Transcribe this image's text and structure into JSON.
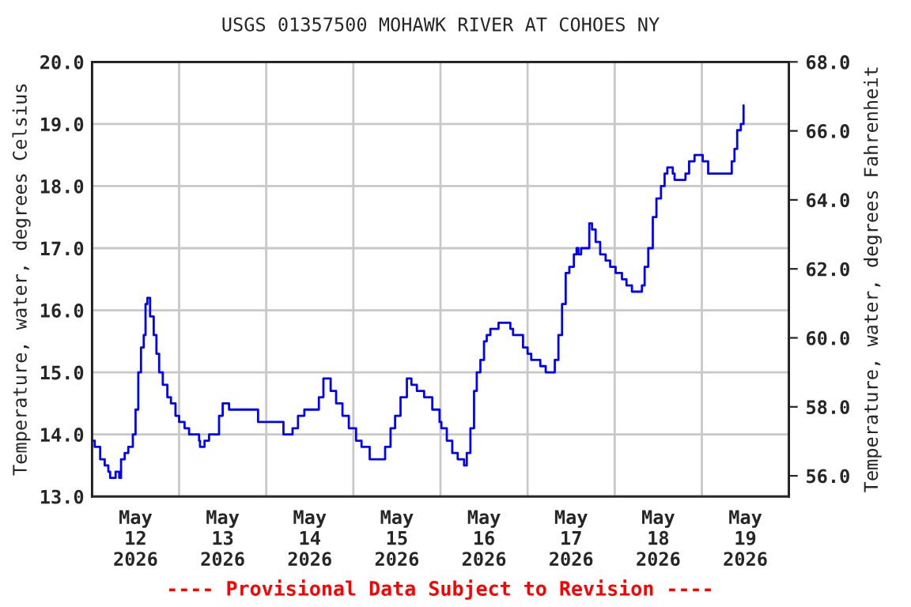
{
  "chart_data": {
    "type": "step",
    "title": "USGS 01357500 MOHAWK RIVER AT COHOES NY",
    "ylabel": "Temperature, water, degrees Celsius",
    "y2label": "Temperature, water, degrees Fahrenheit",
    "annotations": [
      "---- Provisional Data Subject to Revision ----"
    ],
    "series": [
      {
        "color": "#0000ff",
        "x": [
          "2026-05-12T00:00",
          "2026-05-12T00:45",
          "2026-05-12T02:15",
          "2026-05-12T03:30",
          "2026-05-12T04:30",
          "2026-05-12T05:00",
          "2026-05-12T06:00",
          "2026-05-12T06:30",
          "2026-05-12T07:30",
          "2026-05-12T08:00",
          "2026-05-12T09:00",
          "2026-05-12T10:00",
          "2026-05-12T11:00",
          "2026-05-12T11:15",
          "2026-05-12T12:00",
          "2026-05-12T12:45",
          "2026-05-12T13:30",
          "2026-05-12T14:15",
          "2026-05-12T14:45",
          "2026-05-12T15:15",
          "2026-05-12T15:45",
          "2026-05-12T16:00",
          "2026-05-12T17:00",
          "2026-05-12T17:45",
          "2026-05-12T18:30",
          "2026-05-12T19:30",
          "2026-05-12T20:45",
          "2026-05-12T21:45",
          "2026-05-12T23:00",
          "2026-05-13T00:00",
          "2026-05-13T01:30",
          "2026-05-13T02:45",
          "2026-05-13T04:30",
          "2026-05-13T05:30",
          "2026-05-13T05:45",
          "2026-05-13T07:00",
          "2026-05-13T08:15",
          "2026-05-13T10:15",
          "2026-05-13T11:00",
          "2026-05-13T12:00",
          "2026-05-13T13:00",
          "2026-05-13T13:45",
          "2026-05-13T19:30",
          "2026-05-13T21:45",
          "2026-05-14T03:15",
          "2026-05-14T04:45",
          "2026-05-14T07:15",
          "2026-05-14T08:45",
          "2026-05-14T10:30",
          "2026-05-14T13:00",
          "2026-05-14T14:30",
          "2026-05-14T15:45",
          "2026-05-14T16:45",
          "2026-05-14T17:45",
          "2026-05-14T19:15",
          "2026-05-14T21:00",
          "2026-05-14T22:45",
          "2026-05-15T00:45",
          "2026-05-15T02:15",
          "2026-05-15T04:30",
          "2026-05-15T07:15",
          "2026-05-15T08:45",
          "2026-05-15T10:15",
          "2026-05-15T11:30",
          "2026-05-15T13:00",
          "2026-05-15T14:45",
          "2026-05-15T16:00",
          "2026-05-15T17:30",
          "2026-05-15T19:30",
          "2026-05-15T21:45",
          "2026-05-15T23:45",
          "2026-05-16T00:15",
          "2026-05-16T01:45",
          "2026-05-16T03:15",
          "2026-05-16T04:45",
          "2026-05-16T06:30",
          "2026-05-16T07:15",
          "2026-05-16T08:15",
          "2026-05-16T09:15",
          "2026-05-16T10:00",
          "2026-05-16T11:00",
          "2026-05-16T12:00",
          "2026-05-16T12:45",
          "2026-05-16T13:45",
          "2026-05-16T14:45",
          "2026-05-16T16:00",
          "2026-05-16T18:00",
          "2026-05-16T19:15",
          "2026-05-16T20:00",
          "2026-05-16T21:45",
          "2026-05-16T22:45",
          "2026-05-17T00:00",
          "2026-05-17T01:00",
          "2026-05-17T02:15",
          "2026-05-17T03:30",
          "2026-05-17T05:00",
          "2026-05-17T06:45",
          "2026-05-17T07:30",
          "2026-05-17T08:30",
          "2026-05-17T09:30",
          "2026-05-17T10:30",
          "2026-05-17T11:30",
          "2026-05-17T12:45",
          "2026-05-17T13:30",
          "2026-05-17T14:00",
          "2026-05-17T14:45",
          "2026-05-17T16:15",
          "2026-05-17T17:00",
          "2026-05-17T17:45",
          "2026-05-17T18:45",
          "2026-05-17T20:00",
          "2026-05-17T21:30",
          "2026-05-17T22:45",
          "2026-05-18T00:15",
          "2026-05-18T02:00",
          "2026-05-18T03:15",
          "2026-05-18T04:45",
          "2026-05-18T06:45",
          "2026-05-18T07:30",
          "2026-05-18T08:15",
          "2026-05-18T09:15",
          "2026-05-18T10:30",
          "2026-05-18T11:30",
          "2026-05-18T12:45",
          "2026-05-18T13:45",
          "2026-05-18T14:30",
          "2026-05-18T16:00",
          "2026-05-18T16:30",
          "2026-05-18T18:45",
          "2026-05-18T19:30",
          "2026-05-18T20:30",
          "2026-05-18T21:30",
          "2026-05-18T22:00",
          "2026-05-18T23:30",
          "2026-05-19T00:15",
          "2026-05-19T01:45",
          "2026-05-19T07:30",
          "2026-05-19T08:15",
          "2026-05-19T09:00",
          "2026-05-19T09:45",
          "2026-05-19T10:45",
          "2026-05-19T11:30"
        ],
        "values": [
          13.9,
          13.8,
          13.6,
          13.5,
          13.4,
          13.3,
          13.3,
          13.4,
          13.3,
          13.6,
          13.7,
          13.8,
          13.8,
          14.0,
          14.4,
          15.0,
          15.4,
          15.6,
          16.1,
          16.2,
          16.2,
          15.9,
          15.6,
          15.3,
          15.0,
          14.8,
          14.6,
          14.5,
          14.3,
          14.2,
          14.1,
          14.0,
          14.0,
          13.9,
          13.8,
          13.9,
          14.0,
          14.0,
          14.3,
          14.5,
          14.5,
          14.4,
          14.4,
          14.2,
          14.2,
          14.0,
          14.1,
          14.3,
          14.4,
          14.4,
          14.6,
          14.9,
          14.9,
          14.7,
          14.5,
          14.3,
          14.1,
          13.9,
          13.8,
          13.6,
          13.6,
          13.8,
          14.1,
          14.3,
          14.6,
          14.9,
          14.8,
          14.7,
          14.6,
          14.4,
          14.2,
          14.1,
          13.9,
          13.7,
          13.6,
          13.5,
          13.7,
          14.1,
          14.7,
          15.0,
          15.2,
          15.5,
          15.6,
          15.7,
          15.7,
          15.8,
          15.8,
          15.7,
          15.6,
          15.6,
          15.4,
          15.3,
          15.2,
          15.2,
          15.1,
          15.0,
          15.0,
          15.2,
          15.6,
          16.1,
          16.6,
          16.7,
          16.9,
          17.0,
          16.9,
          17.0,
          17.0,
          17.4,
          17.3,
          17.1,
          16.9,
          16.8,
          16.7,
          16.6,
          16.5,
          16.4,
          16.3,
          16.3,
          16.4,
          16.7,
          17.0,
          17.5,
          17.8,
          18.0,
          18.2,
          18.3,
          18.2,
          18.1,
          18.1,
          18.2,
          18.4,
          18.4,
          18.5,
          18.5,
          18.4,
          18.2,
          18.2,
          18.4,
          18.6,
          18.9,
          19.0,
          19.3
        ]
      }
    ],
    "xlim": [
      "2026-05-12T00:00",
      "2026-05-20T00:00"
    ],
    "xticks": [
      {
        "value": "2026-05-12T12:00",
        "label": "May\n12\n2026"
      },
      {
        "value": "2026-05-13T00:00",
        "label": null
      },
      {
        "value": "2026-05-13T12:00",
        "label": "May\n13\n2026"
      },
      {
        "value": "2026-05-14T00:00",
        "label": null
      },
      {
        "value": "2026-05-14T12:00",
        "label": "May\n14\n2026"
      },
      {
        "value": "2026-05-15T00:00",
        "label": null
      },
      {
        "value": "2026-05-15T12:00",
        "label": "May\n15\n2026"
      },
      {
        "value": "2026-05-16T00:00",
        "label": null
      },
      {
        "value": "2026-05-16T12:00",
        "label": "May\n16\n2026"
      },
      {
        "value": "2026-05-17T00:00",
        "label": null
      },
      {
        "value": "2026-05-17T12:00",
        "label": "May\n17\n2026"
      },
      {
        "value": "2026-05-18T00:00",
        "label": null
      },
      {
        "value": "2026-05-18T12:00",
        "label": "May\n18\n2026"
      },
      {
        "value": "2026-05-19T00:00",
        "label": null
      },
      {
        "value": "2026-05-19T12:00",
        "label": "May\n19\n2026"
      }
    ],
    "ylim": [
      13,
      20
    ],
    "yticks": [
      {
        "value": 13,
        "label": "13.0"
      },
      {
        "value": 14,
        "label": "14.0"
      },
      {
        "value": 15,
        "label": "15.0"
      },
      {
        "value": 16,
        "label": "16.0"
      },
      {
        "value": 17,
        "label": "17.0"
      },
      {
        "value": 18,
        "label": "18.0"
      },
      {
        "value": 19,
        "label": "19.0"
      },
      {
        "value": 20,
        "label": "20.0"
      }
    ],
    "y2lim": [
      55.4,
      68
    ],
    "y2ticks": [
      {
        "value": 56,
        "label": "56.0"
      },
      {
        "value": 58,
        "label": "58.0"
      },
      {
        "value": 60,
        "label": "60.0"
      },
      {
        "value": 62,
        "label": "62.0"
      },
      {
        "value": 64,
        "label": "64.0"
      },
      {
        "value": 66,
        "label": "66.0"
      },
      {
        "value": 68,
        "label": "68.0"
      }
    ],
    "grid": true,
    "legend": false
  }
}
